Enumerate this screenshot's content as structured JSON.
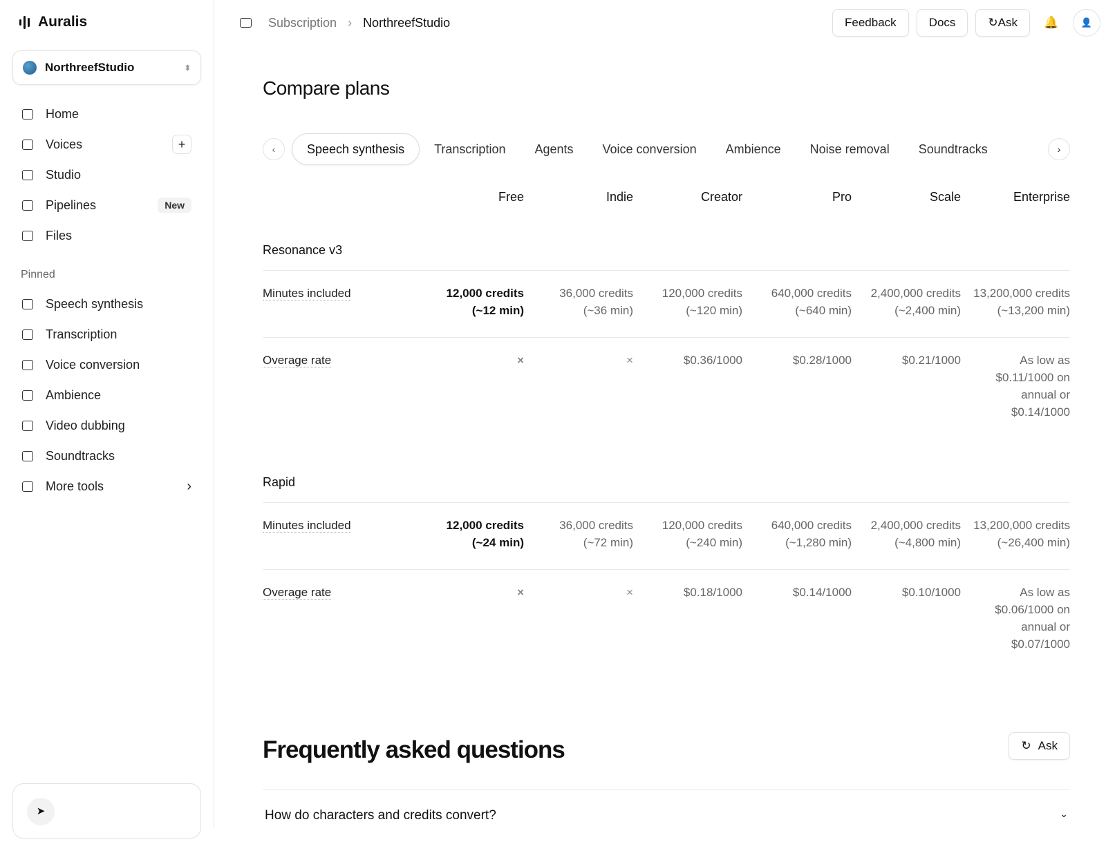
{
  "brand": "Auralis",
  "workspace": "NorthreefStudio",
  "nav": [
    {
      "label": "Home"
    },
    {
      "label": "Voices"
    },
    {
      "label": "Studio"
    },
    {
      "label": "Pipelines",
      "badge": "New"
    },
    {
      "label": "Files"
    }
  ],
  "pinned_title": "Pinned",
  "pinned": [
    "Speech synthesis",
    "Transcription",
    "Voice conversion",
    "Ambience",
    "Video dubbing",
    "Soundtracks",
    "More tools"
  ],
  "breadcrumb": [
    "Subscription",
    "NorthreefStudio"
  ],
  "header_buttons": [
    "Feedback",
    "Docs",
    "Ask"
  ],
  "title": "Compare plans",
  "tabs": [
    "Speech synthesis",
    "Transcription",
    "Agents",
    "Voice conversion",
    "Ambience",
    "Noise removal",
    "Soundtracks"
  ],
  "active_tab": 0,
  "plans": [
    "Free",
    "Indie",
    "Creator",
    "Pro",
    "Scale",
    "Enterprise"
  ],
  "sections": [
    {
      "name": "Resonance v3",
      "rows": [
        {
          "label": "Minutes included",
          "cells": [
            [
              "12,000 credits",
              "(~12 min)"
            ],
            [
              "36,000 credits",
              "(~36 min)"
            ],
            [
              "120,000 credits",
              "(~120 min)"
            ],
            [
              "640,000 credits",
              "(~640 min)"
            ],
            [
              "2,400,000 credits",
              "(~2,400 min)"
            ],
            [
              "13,200,000 credits",
              "(~13,200 min)"
            ]
          ]
        },
        {
          "label": "Overage rate",
          "cells": [
            null,
            null,
            "$0.36/1000",
            "$0.28/1000",
            "$0.21/1000",
            "As low as $0.11/1000 on annual or $0.14/1000"
          ]
        }
      ]
    },
    {
      "name": "Rapid",
      "rows": [
        {
          "label": "Minutes included",
          "cells": [
            [
              "12,000 credits",
              "(~24 min)"
            ],
            [
              "36,000 credits",
              "(~72 min)"
            ],
            [
              "120,000 credits",
              "(~240 min)"
            ],
            [
              "640,000 credits",
              "(~1,280 min)"
            ],
            [
              "2,400,000 credits",
              "(~4,800 min)"
            ],
            [
              "13,200,000 credits",
              "(~26,400 min)"
            ]
          ]
        },
        {
          "label": "Overage rate",
          "cells": [
            null,
            null,
            "$0.18/1000",
            "$0.14/1000",
            "$0.10/1000",
            "As low as $0.06/1000 on annual or $0.07/1000"
          ]
        }
      ]
    }
  ],
  "faq": {
    "title": "Frequently asked questions",
    "ask": "Ask",
    "questions": [
      "How do characters and credits convert?"
    ]
  }
}
